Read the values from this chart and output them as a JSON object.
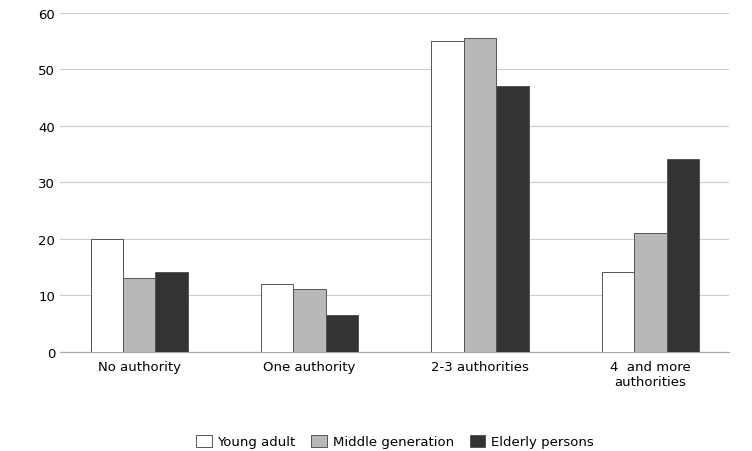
{
  "categories": [
    "No authority",
    "One authority",
    "2-3 authorities",
    "4  and more\nauthorities"
  ],
  "series": {
    "Young adult": [
      20,
      12,
      55,
      14
    ],
    "Middle generation": [
      13,
      11,
      55.5,
      21
    ],
    "Elderly persons": [
      14,
      6.5,
      47,
      34
    ]
  },
  "colors": {
    "Young adult": "#ffffff",
    "Middle generation": "#b8b8b8",
    "Elderly persons": "#333333"
  },
  "bar_edge_color": "#555555",
  "ylim": [
    0,
    60
  ],
  "yticks": [
    0,
    10,
    20,
    30,
    40,
    50,
    60
  ],
  "legend_labels": [
    "Young adult",
    "Middle generation",
    "Elderly persons"
  ],
  "background_color": "#ffffff",
  "grid_color": "#cccccc",
  "bar_width": 0.19,
  "bar_spacing": 0.0
}
